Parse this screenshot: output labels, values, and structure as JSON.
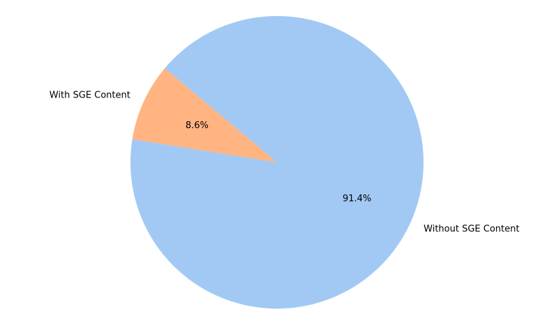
{
  "chart_data": {
    "type": "pie",
    "title": "",
    "slices": [
      {
        "label": "Without SGE Content",
        "value": 91.4,
        "pct_label": "91.4%",
        "color": "#a1c9f4"
      },
      {
        "label": "With SGE Content",
        "value": 8.6,
        "pct_label": "8.6%",
        "color": "#ffb482"
      }
    ],
    "legend": "none"
  }
}
